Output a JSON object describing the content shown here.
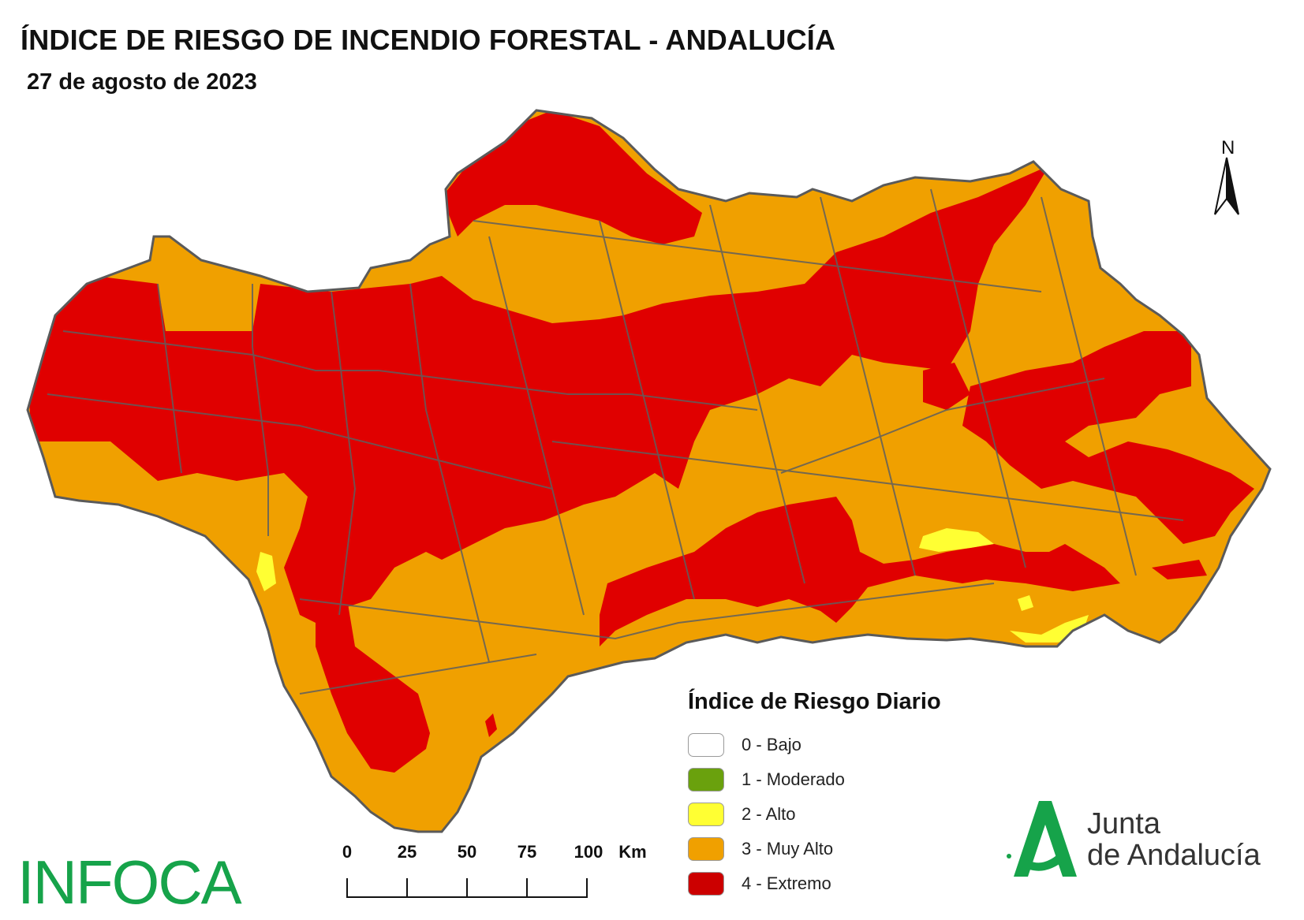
{
  "title": "ÍNDICE DE RIESGO DE INCENDIO FORESTAL - ANDALUCÍA",
  "subtitle": "27 de agosto de 2023",
  "north_label": "N",
  "legend": {
    "title": "Índice de Riesgo Diario",
    "items": [
      {
        "label": "0 - Bajo",
        "color": "#ffffff"
      },
      {
        "label": "1 - Moderado",
        "color": "#6aa10d"
      },
      {
        "label": "2 - Alto",
        "color": "#ffff33"
      },
      {
        "label": "3 - Muy Alto",
        "color": "#f0a000"
      },
      {
        "label": "4 - Extremo",
        "color": "#e00000"
      }
    ]
  },
  "scale_bar": {
    "ticks": [
      "0",
      "25",
      "50",
      "75",
      "100"
    ],
    "unit": "Km"
  },
  "logos": {
    "infoca": "INFOCA",
    "junta_line1": "Junta",
    "junta_line2": "de Andalucía"
  },
  "colors": {
    "muy_alto": "#f0a000",
    "extremo": "#e00000",
    "alto": "#ffff33",
    "border": "#5a5a5a",
    "brand_green": "#16a34a"
  }
}
